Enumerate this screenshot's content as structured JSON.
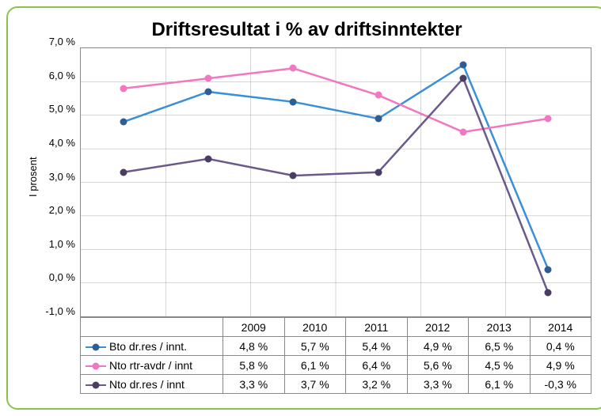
{
  "chart": {
    "type": "line",
    "title": "Driftsresultat i % av driftsinntekter",
    "title_fontsize": 24,
    "y_axis_label": "I prosent",
    "label_fontsize": 13,
    "background_color": "#ffffff",
    "border_color": "#8bc34a",
    "grid_color": "#888888",
    "text_color": "#000000",
    "ylim": [
      -1.0,
      7.0
    ],
    "ytick_step": 1.0,
    "y_ticks": [
      "7,0 %",
      "6,0 %",
      "5,0 %",
      "4,0 %",
      "3,0 %",
      "2,0 %",
      "1,0 %",
      "0,0 %",
      "-1,0 %"
    ],
    "categories": [
      "2009",
      "2010",
      "2011",
      "2012",
      "2013",
      "2014"
    ],
    "legend_col_label": "",
    "series": [
      {
        "name": "Bto dr.res / innt.",
        "color": "#3a8fd6",
        "marker_color": "#2f5f91",
        "line_width": 2.5,
        "marker_size": 9,
        "values": [
          4.8,
          5.7,
          5.4,
          4.9,
          6.5,
          0.4
        ],
        "display": [
          "4,8 %",
          "5,7 %",
          "5,4 %",
          "4,9 %",
          "6,5 %",
          "0,4 %"
        ]
      },
      {
        "name": "Nto rtr-avdr / innt",
        "color": "#f178c0",
        "marker_color": "#f178c0",
        "line_width": 2.5,
        "marker_size": 9,
        "values": [
          5.8,
          6.1,
          6.4,
          5.6,
          4.5,
          4.9
        ],
        "display": [
          "5,8 %",
          "6,1 %",
          "6,4 %",
          "5,6 %",
          "4,5 %",
          "4,9 %"
        ]
      },
      {
        "name": "Nto dr.res / innt",
        "color": "#6a5a8c",
        "marker_color": "#4a3d63",
        "line_width": 2.5,
        "marker_size": 9,
        "values": [
          3.3,
          3.7,
          3.2,
          3.3,
          6.1,
          -0.3
        ],
        "display": [
          "3,3 %",
          "3,7 %",
          "3,2 %",
          "3,3 %",
          "6,1 %",
          "-0,3 %"
        ]
      }
    ]
  }
}
